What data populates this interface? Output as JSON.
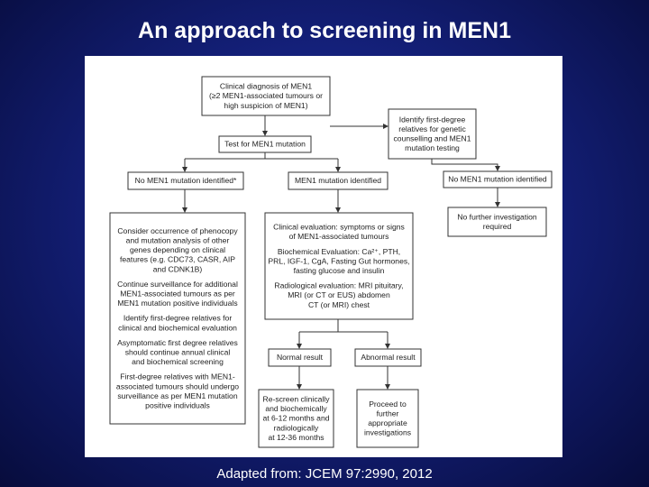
{
  "title": "An approach to screening in MEN1",
  "caption": "Adapted from: JCEM 97:2990, 2012",
  "nodes": [
    {
      "paragraphs": [
        [
          "Clinical diagnosis of MEN1",
          "(≥2 MEN1-associated tumours or",
          "high suspicion of MEN1)"
        ]
      ]
    },
    {
      "paragraphs": [
        [
          "Test for MEN1 mutation"
        ]
      ]
    },
    {
      "paragraphs": [
        [
          "Identify first-degree",
          "relatives for genetic",
          "counselling and MEN1",
          "mutation testing"
        ]
      ]
    },
    {
      "paragraphs": [
        [
          "No MEN1 mutation identified*"
        ]
      ]
    },
    {
      "paragraphs": [
        [
          "MEN1 mutation identified"
        ]
      ]
    },
    {
      "paragraphs": [
        [
          "No MEN1 mutation identified"
        ]
      ]
    },
    {
      "paragraphs": [
        [
          "No further investigation",
          "required"
        ]
      ]
    },
    {
      "paragraphs": [
        [
          "Consider occurrence of phenocopy",
          "and mutation analysis of other",
          "genes depending on clinical",
          "features (e.g. CDC73, CASR, AIP",
          "and CDNK1B)"
        ],
        [
          "Continue surveillance for additional",
          "MEN1-associated tumours as per",
          "MEN1 mutation positive individuals"
        ],
        [
          "Identify first-degree relatives for",
          "clinical and biochemical evaluation"
        ],
        [
          "Asymptomatic first degree relatives",
          "should continue annual clinical",
          "and biochemical screening"
        ],
        [
          "First-degree relatives with MEN1-",
          "associated tumours should undergo",
          "surveillance as per MEN1 mutation",
          "positive individuals"
        ]
      ]
    },
    {
      "paragraphs": [
        [
          "Clinical evaluation: symptoms or signs",
          "of MEN1-associated tumours"
        ],
        [
          "Biochemical Evaluation: Ca²⁺, PTH,",
          "PRL, IGF-1, CgA, Fasting Gut hormones,",
          "fasting glucose and insulin"
        ],
        [
          "Radiological evaluation: MRI pituitary,",
          "MRI (or CT or EUS) abdomen",
          "CT (or MRI) chest"
        ]
      ]
    },
    {
      "paragraphs": [
        [
          "Normal result"
        ]
      ]
    },
    {
      "paragraphs": [
        [
          "Abnormal result"
        ]
      ]
    },
    {
      "paragraphs": [
        [
          "Re-screen clinically",
          "and biochemically",
          "at 6-12 months and",
          "radiologically",
          "at 12-36 months"
        ]
      ]
    },
    {
      "paragraphs": [
        [
          "Proceed to",
          "further",
          "appropriate",
          "investigations"
        ]
      ]
    }
  ]
}
